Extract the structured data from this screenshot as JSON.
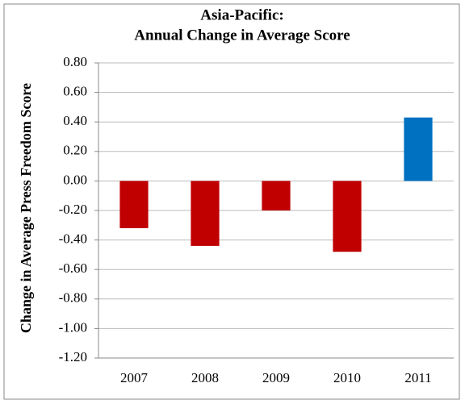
{
  "chart_data": {
    "type": "bar",
    "title": [
      "Asia-Pacific:",
      "Annual Change in Average Score"
    ],
    "y_label": "Change in Average Press Freedom Score",
    "categories": [
      "2007",
      "2008",
      "2009",
      "2010",
      "2011"
    ],
    "values": [
      -0.32,
      -0.44,
      -0.2,
      -0.48,
      0.43
    ],
    "colors": [
      "#c00000",
      "#c00000",
      "#c00000",
      "#c00000",
      "#0070c0"
    ],
    "ylim": [
      -1.2,
      0.8
    ],
    "yticks": [
      {
        "value": -1.2,
        "label": "-1.20"
      },
      {
        "value": -1.0,
        "label": "-1.00"
      },
      {
        "value": -0.8,
        "label": "-0.80"
      },
      {
        "value": -0.6,
        "label": "-0.60"
      },
      {
        "value": -0.4,
        "label": "-0.40"
      },
      {
        "value": -0.2,
        "label": "-0.20"
      },
      {
        "value": 0,
        "label": "0.00"
      },
      {
        "value": 0.2,
        "label": "0.20"
      },
      {
        "value": 0.4,
        "label": "0.40"
      },
      {
        "value": 0.6,
        "label": "0.60"
      },
      {
        "value": 0.8,
        "label": "0.80"
      }
    ],
    "grid": true
  }
}
